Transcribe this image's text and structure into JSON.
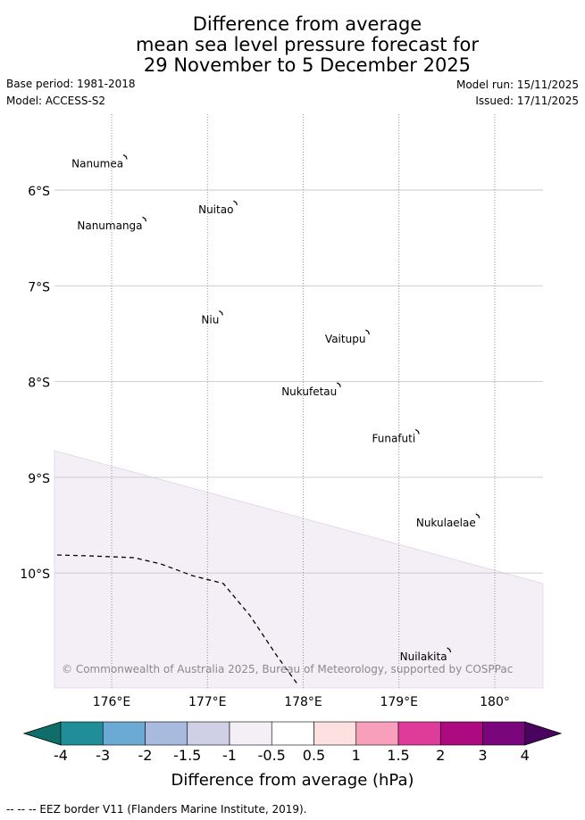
{
  "title_lines": [
    "Difference from average",
    "mean sea level pressure forecast for",
    "29 November to 5 December 2025"
  ],
  "meta": {
    "base_period": "Base period: 1981-2018",
    "model": "Model: ACCESS-S2",
    "model_run": "Model run: 15/11/2025",
    "issued": "Issued: 17/11/2025"
  },
  "map": {
    "lon_ticks": [
      "176°E",
      "177°E",
      "178°E",
      "179°E",
      "180°"
    ],
    "lat_ticks": [
      "6°S",
      "7°S",
      "8°S",
      "9°S",
      "10°S"
    ],
    "lon_values": [
      176,
      177,
      178,
      179,
      180
    ],
    "lat_values": [
      -6,
      -7,
      -8,
      -9,
      -10
    ],
    "lon_range": [
      175.4,
      180.5
    ],
    "lat_range": [
      -11.2,
      -5.2
    ],
    "anomaly_region": {
      "category": "-0.5 to -1",
      "color": "#f4eef7"
    },
    "islands": [
      {
        "name": "Nanumea",
        "lon": 176.15,
        "lat": -5.65
      },
      {
        "name": "Nuitao",
        "lon": 177.3,
        "lat": -6.13
      },
      {
        "name": "Nanumanga",
        "lon": 176.35,
        "lat": -6.3
      },
      {
        "name": "Niu",
        "lon": 177.15,
        "lat": -7.28
      },
      {
        "name": "Vaitupu",
        "lon": 178.68,
        "lat": -7.48
      },
      {
        "name": "Nukufetau",
        "lon": 178.38,
        "lat": -8.03
      },
      {
        "name": "Funafuti",
        "lon": 179.2,
        "lat": -8.52
      },
      {
        "name": "Nukulaelae",
        "lon": 179.83,
        "lat": -9.4
      },
      {
        "name": "Nuilakita",
        "lon": 179.53,
        "lat": -10.8
      }
    ],
    "copyright": "© Commonwealth of Australia 2025, Bureau of Meteorology, supported by COSPPac"
  },
  "colorbar": {
    "labels": [
      "-4",
      "-3",
      "-2",
      "-1.5",
      "-1",
      "-0.5",
      "0.5",
      "1",
      "1.5",
      "2",
      "3",
      "4"
    ],
    "colors": [
      "#0f6e6a",
      "#208e99",
      "#6aaad4",
      "#a9badf",
      "#cfd0e6",
      "#f4eef7",
      "#ffffff",
      "#fde0e0",
      "#f8a0bb",
      "#de3b9a",
      "#ad0a81",
      "#7b057c",
      "#4a045f"
    ],
    "title": "Difference from average (hPa)"
  },
  "footer": "-- -- -- EEZ border V11 (Flanders Marine Institute, 2019)."
}
